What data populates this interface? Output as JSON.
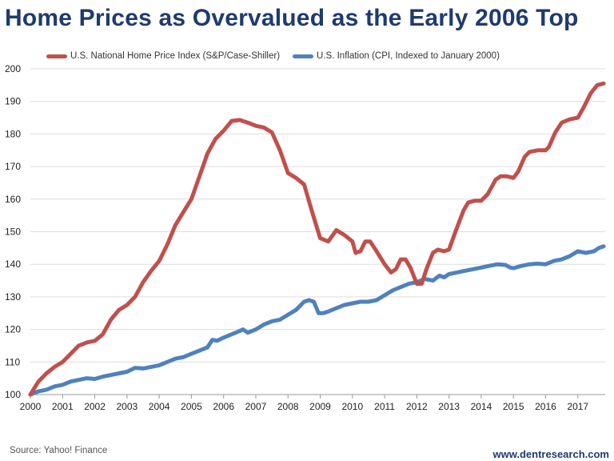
{
  "title": "Home Prices as Overvalued as the Early 2006 Top",
  "source": "Source: Yahoo! Finance",
  "website": "www.dentresearch.com",
  "colors": {
    "title": "#1f3b6e",
    "home": "#c0504d",
    "cpi": "#4f81bd",
    "grid": "#dddddd"
  },
  "chart_data": {
    "type": "line",
    "title": "Home Prices as Overvalued as the Early 2006 Top",
    "xlabel": "",
    "ylabel": "",
    "x_ticks": [
      "2000",
      "2001",
      "2002",
      "2003",
      "2004",
      "2005",
      "2006",
      "2007",
      "2008",
      "2009",
      "2010",
      "2011",
      "2012",
      "2013",
      "2014",
      "2015",
      "2016",
      "2017"
    ],
    "y_ticks": [
      100,
      110,
      120,
      130,
      140,
      150,
      160,
      170,
      180,
      190,
      200
    ],
    "xlim": [
      2000,
      2017.85
    ],
    "ylim": [
      100,
      200
    ],
    "grid": true,
    "legend_position": "top",
    "series": [
      {
        "name": "U.S. National Home Price Index (S&P/Case-Shiller)",
        "color": "#c0504d",
        "points": [
          [
            2000.0,
            100.0
          ],
          [
            2000.25,
            104.0
          ],
          [
            2000.5,
            106.5
          ],
          [
            2000.75,
            108.5
          ],
          [
            2001.0,
            110.0
          ],
          [
            2001.25,
            112.5
          ],
          [
            2001.5,
            115.0
          ],
          [
            2001.75,
            116.0
          ],
          [
            2002.0,
            116.5
          ],
          [
            2002.25,
            118.5
          ],
          [
            2002.5,
            123.0
          ],
          [
            2002.75,
            126.0
          ],
          [
            2003.0,
            127.5
          ],
          [
            2003.25,
            130.0
          ],
          [
            2003.5,
            134.5
          ],
          [
            2003.75,
            138.0
          ],
          [
            2004.0,
            141.0
          ],
          [
            2004.25,
            146.0
          ],
          [
            2004.5,
            152.0
          ],
          [
            2004.75,
            156.0
          ],
          [
            2005.0,
            160.0
          ],
          [
            2005.25,
            167.0
          ],
          [
            2005.5,
            174.0
          ],
          [
            2005.75,
            178.5
          ],
          [
            2006.0,
            181.0
          ],
          [
            2006.25,
            184.0
          ],
          [
            2006.5,
            184.3
          ],
          [
            2006.75,
            183.5
          ],
          [
            2007.0,
            182.5
          ],
          [
            2007.25,
            182.0
          ],
          [
            2007.5,
            180.5
          ],
          [
            2007.75,
            175.0
          ],
          [
            2008.0,
            168.0
          ],
          [
            2008.25,
            166.5
          ],
          [
            2008.5,
            164.5
          ],
          [
            2008.75,
            156.0
          ],
          [
            2009.0,
            148.0
          ],
          [
            2009.25,
            147.0
          ],
          [
            2009.5,
            150.5
          ],
          [
            2009.75,
            149.0
          ],
          [
            2010.0,
            147.0
          ],
          [
            2010.1,
            143.5
          ],
          [
            2010.25,
            144.0
          ],
          [
            2010.4,
            147.0
          ],
          [
            2010.55,
            147.0
          ],
          [
            2010.75,
            144.0
          ],
          [
            2011.0,
            140.0
          ],
          [
            2011.2,
            137.5
          ],
          [
            2011.35,
            138.5
          ],
          [
            2011.5,
            141.5
          ],
          [
            2011.65,
            141.5
          ],
          [
            2011.8,
            139.0
          ],
          [
            2012.0,
            134.0
          ],
          [
            2012.15,
            134.0
          ],
          [
            2012.3,
            138.5
          ],
          [
            2012.5,
            143.5
          ],
          [
            2012.65,
            144.5
          ],
          [
            2012.85,
            144.0
          ],
          [
            2013.0,
            144.5
          ],
          [
            2013.2,
            150.0
          ],
          [
            2013.45,
            156.5
          ],
          [
            2013.6,
            159.0
          ],
          [
            2013.8,
            159.5
          ],
          [
            2014.0,
            159.5
          ],
          [
            2014.2,
            161.5
          ],
          [
            2014.45,
            166.0
          ],
          [
            2014.6,
            167.0
          ],
          [
            2014.8,
            167.0
          ],
          [
            2015.0,
            166.5
          ],
          [
            2015.15,
            168.5
          ],
          [
            2015.35,
            173.0
          ],
          [
            2015.5,
            174.5
          ],
          [
            2015.75,
            175.0
          ],
          [
            2016.0,
            175.0
          ],
          [
            2016.1,
            176.0
          ],
          [
            2016.3,
            180.5
          ],
          [
            2016.5,
            183.5
          ],
          [
            2016.75,
            184.5
          ],
          [
            2017.0,
            185.0
          ],
          [
            2017.2,
            188.5
          ],
          [
            2017.4,
            192.5
          ],
          [
            2017.6,
            195.0
          ],
          [
            2017.8,
            195.5
          ]
        ]
      },
      {
        "name": "U.S. Inflation (CPI, Indexed to January 2000)",
        "color": "#4f81bd",
        "points": [
          [
            2000.0,
            100.0
          ],
          [
            2000.25,
            101.0
          ],
          [
            2000.5,
            101.5
          ],
          [
            2000.75,
            102.5
          ],
          [
            2001.0,
            103.0
          ],
          [
            2001.25,
            104.0
          ],
          [
            2001.5,
            104.5
          ],
          [
            2001.75,
            105.0
          ],
          [
            2002.0,
            104.8
          ],
          [
            2002.25,
            105.5
          ],
          [
            2002.5,
            106.0
          ],
          [
            2002.75,
            106.5
          ],
          [
            2003.0,
            107.0
          ],
          [
            2003.25,
            108.2
          ],
          [
            2003.5,
            108.0
          ],
          [
            2003.75,
            108.5
          ],
          [
            2004.0,
            109.0
          ],
          [
            2004.25,
            110.0
          ],
          [
            2004.5,
            111.0
          ],
          [
            2004.75,
            111.5
          ],
          [
            2005.0,
            112.5
          ],
          [
            2005.25,
            113.5
          ],
          [
            2005.5,
            114.5
          ],
          [
            2005.65,
            116.8
          ],
          [
            2005.8,
            116.5
          ],
          [
            2006.0,
            117.5
          ],
          [
            2006.25,
            118.5
          ],
          [
            2006.5,
            119.5
          ],
          [
            2006.6,
            120.0
          ],
          [
            2006.75,
            119.0
          ],
          [
            2007.0,
            120.0
          ],
          [
            2007.25,
            121.5
          ],
          [
            2007.5,
            122.5
          ],
          [
            2007.75,
            123.0
          ],
          [
            2008.0,
            124.5
          ],
          [
            2008.25,
            126.0
          ],
          [
            2008.5,
            128.5
          ],
          [
            2008.65,
            129.0
          ],
          [
            2008.8,
            128.5
          ],
          [
            2008.95,
            125.0
          ],
          [
            2009.1,
            125.0
          ],
          [
            2009.25,
            125.5
          ],
          [
            2009.5,
            126.5
          ],
          [
            2009.75,
            127.5
          ],
          [
            2010.0,
            128.0
          ],
          [
            2010.25,
            128.5
          ],
          [
            2010.5,
            128.5
          ],
          [
            2010.75,
            129.0
          ],
          [
            2011.0,
            130.5
          ],
          [
            2011.25,
            132.0
          ],
          [
            2011.5,
            133.0
          ],
          [
            2011.75,
            134.0
          ],
          [
            2012.0,
            134.5
          ],
          [
            2012.25,
            135.5
          ],
          [
            2012.5,
            135.0
          ],
          [
            2012.7,
            136.5
          ],
          [
            2012.85,
            136.0
          ],
          [
            2013.0,
            137.0
          ],
          [
            2013.25,
            137.5
          ],
          [
            2013.5,
            138.0
          ],
          [
            2013.75,
            138.5
          ],
          [
            2014.0,
            139.0
          ],
          [
            2014.25,
            139.5
          ],
          [
            2014.5,
            140.0
          ],
          [
            2014.75,
            139.8
          ],
          [
            2014.9,
            139.0
          ],
          [
            2015.0,
            138.8
          ],
          [
            2015.25,
            139.5
          ],
          [
            2015.5,
            140.0
          ],
          [
            2015.75,
            140.2
          ],
          [
            2016.0,
            140.0
          ],
          [
            2016.25,
            141.0
          ],
          [
            2016.5,
            141.5
          ],
          [
            2016.75,
            142.5
          ],
          [
            2017.0,
            144.0
          ],
          [
            2017.25,
            143.5
          ],
          [
            2017.5,
            144.0
          ],
          [
            2017.65,
            145.0
          ],
          [
            2017.8,
            145.5
          ]
        ]
      }
    ]
  }
}
